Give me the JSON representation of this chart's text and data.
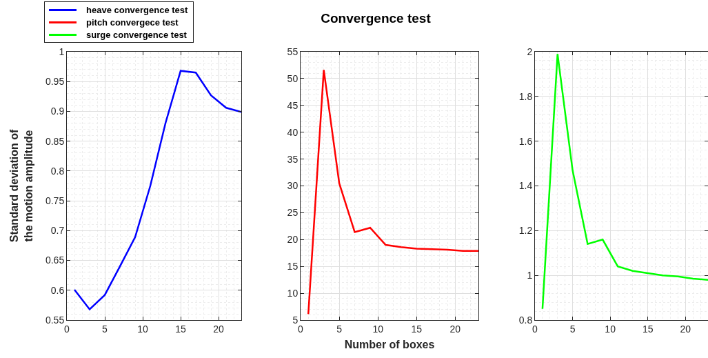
{
  "chart_data": [
    {
      "type": "line",
      "ylabel": "Standard deviation of the motion amplitude",
      "x": [
        1,
        3,
        5,
        7,
        9,
        11,
        13,
        15,
        17,
        19,
        21,
        23
      ],
      "series": [
        {
          "name": "heave convergence test",
          "color": "#0000ff",
          "values": [
            0.601,
            0.568,
            0.592,
            0.64,
            0.689,
            0.775,
            0.88,
            0.968,
            0.965,
            0.927,
            0.906,
            0.899
          ]
        }
      ],
      "xlim": [
        0,
        23
      ],
      "xticks": [
        0,
        5,
        10,
        15,
        20
      ],
      "ylim": [
        0.55,
        1
      ],
      "yticks": [
        0.55,
        0.6,
        0.65,
        0.7,
        0.75,
        0.8,
        0.85,
        0.9,
        0.95,
        1
      ],
      "grid": true,
      "legend": "top left"
    },
    {
      "type": "line",
      "title": "Convergence test",
      "xlabel": "Number of boxes",
      "x": [
        1,
        3,
        5,
        7,
        9,
        11,
        13,
        15,
        17,
        19,
        21,
        23
      ],
      "series": [
        {
          "name": "pitch convergece test",
          "color": "#ff0000",
          "values": [
            6.1,
            51.6,
            30.5,
            21.4,
            22.2,
            19.0,
            18.6,
            18.3,
            18.2,
            18.1,
            17.9,
            17.9
          ]
        }
      ],
      "xlim": [
        0,
        23
      ],
      "xticks": [
        0,
        5,
        10,
        15,
        20
      ],
      "ylim": [
        5,
        55
      ],
      "yticks": [
        5,
        10,
        15,
        20,
        25,
        30,
        35,
        40,
        45,
        50,
        55
      ],
      "grid": true,
      "legend": "top left"
    },
    {
      "type": "line",
      "x": [
        1,
        3,
        5,
        7,
        9,
        11,
        13,
        15,
        17,
        19,
        21,
        23
      ],
      "series": [
        {
          "name": "surge convergence test",
          "color": "#00ff00",
          "values": [
            0.85,
            1.99,
            1.47,
            1.14,
            1.16,
            1.04,
            1.02,
            1.01,
            1.0,
            0.995,
            0.985,
            0.98
          ]
        }
      ],
      "xlim": [
        0,
        23
      ],
      "xticks": [
        0,
        5,
        10,
        15,
        20
      ],
      "ylim": [
        0.8,
        2
      ],
      "yticks": [
        0.8,
        1,
        1.2,
        1.4,
        1.6,
        1.8,
        2
      ],
      "grid": true,
      "legend": "top left"
    }
  ]
}
